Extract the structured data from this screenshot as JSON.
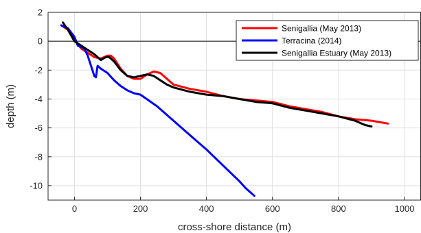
{
  "chart_data": {
    "type": "line",
    "title": "",
    "xlabel": "cross-shore distance (m)",
    "ylabel": "depth (m)",
    "xlim": [
      -80,
      1050
    ],
    "ylim": [
      -11,
      2
    ],
    "xticks": [
      0,
      200,
      400,
      600,
      800,
      1000
    ],
    "yticks": [
      2,
      0,
      -2,
      -4,
      -6,
      -8,
      -10
    ],
    "grid": true,
    "zero_line": true,
    "legend_position": "top-right",
    "series": [
      {
        "name": "Senigallia (May 2013)",
        "color": "#ff0000",
        "x": [
          -40,
          -20,
          0,
          20,
          40,
          60,
          80,
          100,
          110,
          120,
          140,
          160,
          180,
          200,
          220,
          240,
          260,
          280,
          300,
          350,
          400,
          450,
          500,
          550,
          600,
          650,
          700,
          750,
          800,
          850,
          900,
          950
        ],
        "y": [
          1.1,
          0.8,
          0.1,
          -0.5,
          -0.8,
          -1.1,
          -1.2,
          -1.0,
          -1.0,
          -1.2,
          -1.9,
          -2.4,
          -2.6,
          -2.6,
          -2.3,
          -2.1,
          -2.2,
          -2.6,
          -3.0,
          -3.3,
          -3.5,
          -3.8,
          -4.0,
          -4.1,
          -4.2,
          -4.5,
          -4.7,
          -4.9,
          -5.2,
          -5.4,
          -5.5,
          -5.7
        ]
      },
      {
        "name": "Terracina (2014)",
        "color": "#0000ff",
        "x": [
          -40,
          -20,
          0,
          10,
          20,
          30,
          40,
          50,
          60,
          65,
          70,
          80,
          100,
          120,
          140,
          160,
          180,
          200,
          250,
          300,
          350,
          400,
          450,
          500,
          520,
          545
        ],
        "y": [
          1.1,
          0.9,
          0.3,
          -0.3,
          -0.4,
          -0.5,
          -1.0,
          -1.7,
          -2.4,
          -2.5,
          -1.7,
          -1.9,
          -2.2,
          -2.7,
          -3.1,
          -3.4,
          -3.6,
          -3.7,
          -4.5,
          -5.5,
          -6.5,
          -7.5,
          -8.6,
          -9.7,
          -10.2,
          -10.7
        ]
      },
      {
        "name": "Senigallia Estuary (May 2013)",
        "color": "#000000",
        "x": [
          -35,
          -20,
          0,
          20,
          40,
          60,
          80,
          95,
          105,
          120,
          140,
          160,
          180,
          200,
          220,
          240,
          260,
          280,
          300,
          350,
          400,
          450,
          500,
          550,
          600,
          650,
          700,
          750,
          800,
          850,
          880,
          900
        ],
        "y": [
          1.3,
          0.8,
          0.0,
          -0.3,
          -0.6,
          -0.9,
          -1.3,
          -1.1,
          -1.1,
          -1.4,
          -2.0,
          -2.4,
          -2.5,
          -2.4,
          -2.3,
          -2.4,
          -2.7,
          -3.0,
          -3.2,
          -3.5,
          -3.7,
          -3.8,
          -4.0,
          -4.2,
          -4.3,
          -4.6,
          -4.8,
          -5.0,
          -5.2,
          -5.5,
          -5.8,
          -5.9
        ]
      }
    ]
  }
}
